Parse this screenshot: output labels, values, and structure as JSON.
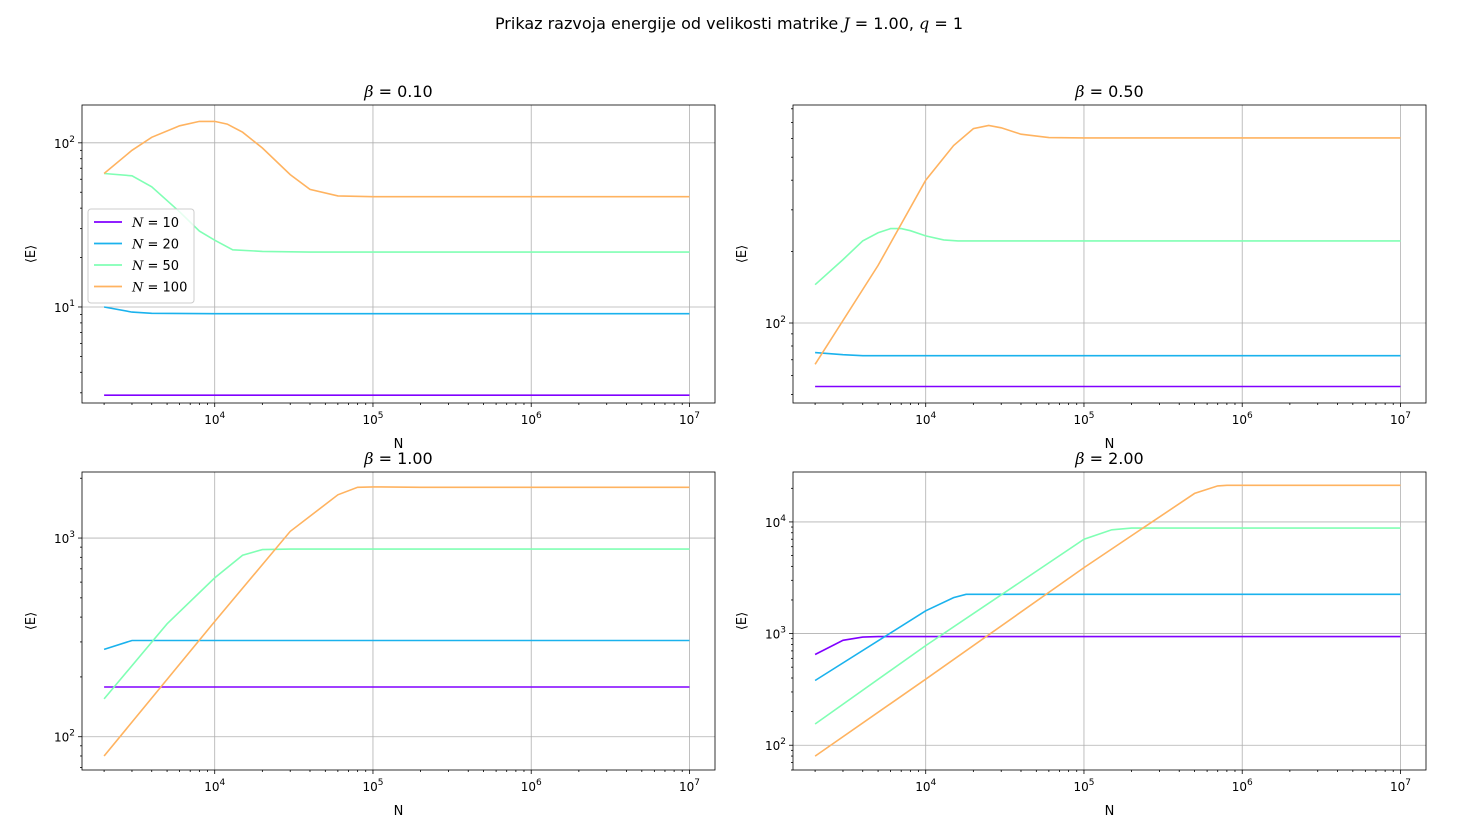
{
  "figure": {
    "suptitle": "Prikaz razvoja energije od velikosti matrike J = 1.00, q = 1"
  },
  "chart_data": [
    {
      "type": "line",
      "title": "β = 0.10",
      "xlabel": "N",
      "ylabel": "⟨E⟩",
      "xscale": "log",
      "yscale": "log",
      "xlim": [
        1450,
        14500000
      ],
      "ylim": [
        2.6,
        170
      ],
      "xticks": [
        {
          "v": 10000,
          "label": "10^4"
        },
        {
          "v": 100000,
          "label": "10^5"
        },
        {
          "v": 1000000,
          "label": "10^6"
        },
        {
          "v": 10000000,
          "label": "10^7"
        }
      ],
      "yticks": [
        {
          "v": 10,
          "label": "10^1"
        },
        {
          "v": 100,
          "label": "10^2"
        }
      ],
      "grid": true,
      "legend": {
        "placement": "center-left",
        "entries": [
          "N = 10",
          "N = 20",
          "N = 50",
          "N = 100"
        ]
      },
      "series": [
        {
          "name": "N = 10",
          "color": "#8000ff",
          "x": [
            2000,
            10000000
          ],
          "y": [
            2.9,
            2.9
          ]
        },
        {
          "name": "N = 20",
          "color": "#1ab2ed",
          "x": [
            2000,
            3000,
            4000,
            10000,
            10000000
          ],
          "y": [
            10.0,
            9.3,
            9.15,
            9.1,
            9.1
          ]
        },
        {
          "name": "N = 50",
          "color": "#80ffb4",
          "x": [
            2000,
            3000,
            4000,
            6000,
            8000,
            10000,
            13000,
            20000,
            40000,
            100000,
            10000000
          ],
          "y": [
            65,
            63,
            54,
            38,
            29,
            25.5,
            22.3,
            21.8,
            21.6,
            21.6,
            21.6
          ]
        },
        {
          "name": "N = 100",
          "color": "#ffb360",
          "x": [
            2000,
            3000,
            4000,
            6000,
            8000,
            10000,
            12000,
            15000,
            20000,
            30000,
            40000,
            60000,
            100000,
            10000000
          ],
          "y": [
            65,
            90,
            108,
            127,
            135,
            135,
            130,
            116,
            93,
            64,
            52,
            47.5,
            47,
            47
          ]
        }
      ]
    },
    {
      "type": "line",
      "title": "β = 0.50",
      "xlabel": "N",
      "ylabel": "⟨E⟩",
      "xscale": "log",
      "yscale": "log",
      "xlim": [
        1450,
        14500000
      ],
      "ylim": [
        46,
        830
      ],
      "xticks": [
        {
          "v": 10000,
          "label": "10^4"
        },
        {
          "v": 100000,
          "label": "10^5"
        },
        {
          "v": 1000000,
          "label": "10^6"
        },
        {
          "v": 10000000,
          "label": "10^7"
        }
      ],
      "yticks": [
        {
          "v": 100,
          "label": "10^2"
        }
      ],
      "grid": true,
      "series": [
        {
          "name": "N = 10",
          "color": "#8000ff",
          "x": [
            2000,
            10000000
          ],
          "y": [
            54,
            54
          ]
        },
        {
          "name": "N = 20",
          "color": "#1ab2ed",
          "x": [
            2000,
            3000,
            4000,
            10000000
          ],
          "y": [
            75,
            73.5,
            72.8,
            72.8
          ]
        },
        {
          "name": "N = 50",
          "color": "#80ffb4",
          "x": [
            2000,
            3000,
            4000,
            5000,
            6000,
            7000,
            8000,
            10000,
            13000,
            16000,
            20000,
            10000000
          ],
          "y": [
            145,
            185,
            222,
            240,
            250,
            250,
            245,
            233,
            224,
            222,
            222,
            222
          ]
        },
        {
          "name": "N = 100",
          "color": "#ffb360",
          "x": [
            2000,
            5000,
            10000,
            15000,
            20000,
            25000,
            30000,
            40000,
            60000,
            100000,
            10000000
          ],
          "y": [
            67,
            175,
            400,
            560,
            660,
            680,
            665,
            625,
            605,
            603,
            603
          ]
        }
      ]
    },
    {
      "type": "line",
      "title": "β = 1.00",
      "xlabel": "N",
      "ylabel": "⟨E⟩",
      "xscale": "log",
      "yscale": "log",
      "xlim": [
        1450,
        14500000
      ],
      "ylim": [
        68,
        2150
      ],
      "xticks": [
        {
          "v": 10000,
          "label": "10^4"
        },
        {
          "v": 100000,
          "label": "10^5"
        },
        {
          "v": 1000000,
          "label": "10^6"
        },
        {
          "v": 10000000,
          "label": "10^7"
        }
      ],
      "yticks": [
        {
          "v": 100,
          "label": "10^2"
        },
        {
          "v": 1000,
          "label": "10^3"
        }
      ],
      "grid": true,
      "series": [
        {
          "name": "N = 10",
          "color": "#8000ff",
          "x": [
            2000,
            10000000
          ],
          "y": [
            178,
            178
          ]
        },
        {
          "name": "N = 20",
          "color": "#1ab2ed",
          "x": [
            2000,
            3000,
            10000000
          ],
          "y": [
            275,
            305,
            305
          ]
        },
        {
          "name": "N = 50",
          "color": "#80ffb4",
          "x": [
            2000,
            5000,
            10000,
            15000,
            20000,
            30000,
            10000000
          ],
          "y": [
            155,
            370,
            630,
            820,
            875,
            880,
            880
          ]
        },
        {
          "name": "N = 100",
          "color": "#ffb360",
          "x": [
            2000,
            10000,
            30000,
            60000,
            80000,
            100000,
            200000,
            10000000
          ],
          "y": [
            80,
            380,
            1080,
            1650,
            1800,
            1810,
            1800,
            1800
          ]
        }
      ]
    },
    {
      "type": "line",
      "title": "β = 2.00",
      "xlabel": "N",
      "ylabel": "⟨E⟩",
      "xscale": "log",
      "yscale": "log",
      "xlim": [
        1450,
        14500000
      ],
      "ylim": [
        60,
        28000
      ],
      "xticks": [
        {
          "v": 10000,
          "label": "10^4"
        },
        {
          "v": 100000,
          "label": "10^5"
        },
        {
          "v": 1000000,
          "label": "10^6"
        },
        {
          "v": 10000000,
          "label": "10^7"
        }
      ],
      "yticks": [
        {
          "v": 100,
          "label": "10^2"
        },
        {
          "v": 1000,
          "label": "10^3"
        },
        {
          "v": 10000,
          "label": "10^4"
        }
      ],
      "grid": true,
      "series": [
        {
          "name": "N = 10",
          "color": "#8000ff",
          "x": [
            2000,
            3000,
            4000,
            5000,
            10000000
          ],
          "y": [
            650,
            870,
            930,
            940,
            940
          ]
        },
        {
          "name": "N = 20",
          "color": "#1ab2ed",
          "x": [
            2000,
            10000,
            15000,
            18000,
            20000,
            10000000
          ],
          "y": [
            380,
            1600,
            2100,
            2250,
            2250,
            2250
          ]
        },
        {
          "name": "N = 50",
          "color": "#80ffb4",
          "x": [
            2000,
            10000,
            100000,
            150000,
            200000,
            10000000
          ],
          "y": [
            155,
            780,
            7000,
            8500,
            8800,
            8800
          ]
        },
        {
          "name": "N = 100",
          "color": "#ffb360",
          "x": [
            2000,
            10000,
            100000,
            500000,
            700000,
            800000,
            10000000
          ],
          "y": [
            80,
            390,
            3900,
            18000,
            21000,
            21300,
            21300
          ]
        }
      ]
    }
  ]
}
